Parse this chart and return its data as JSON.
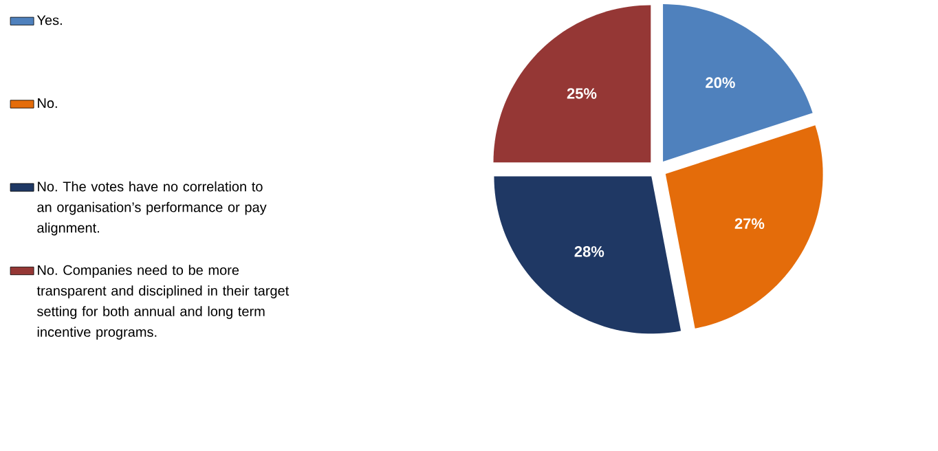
{
  "chart_data": {
    "type": "pie",
    "categories": [
      "Yes.",
      "No.",
      "No. The votes have no correlation to an organisation’s performance or pay alignment.",
      "No. Companies need to be more transparent and disciplined in their target setting for both annual and long term incentive programs."
    ],
    "values": [
      20,
      27,
      28,
      25
    ],
    "colors": [
      "#4f81bd",
      "#e46c0a",
      "#1f3864",
      "#953735"
    ],
    "value_labels": [
      "20%",
      "27%",
      "28%",
      "25%"
    ],
    "legend": "left"
  }
}
